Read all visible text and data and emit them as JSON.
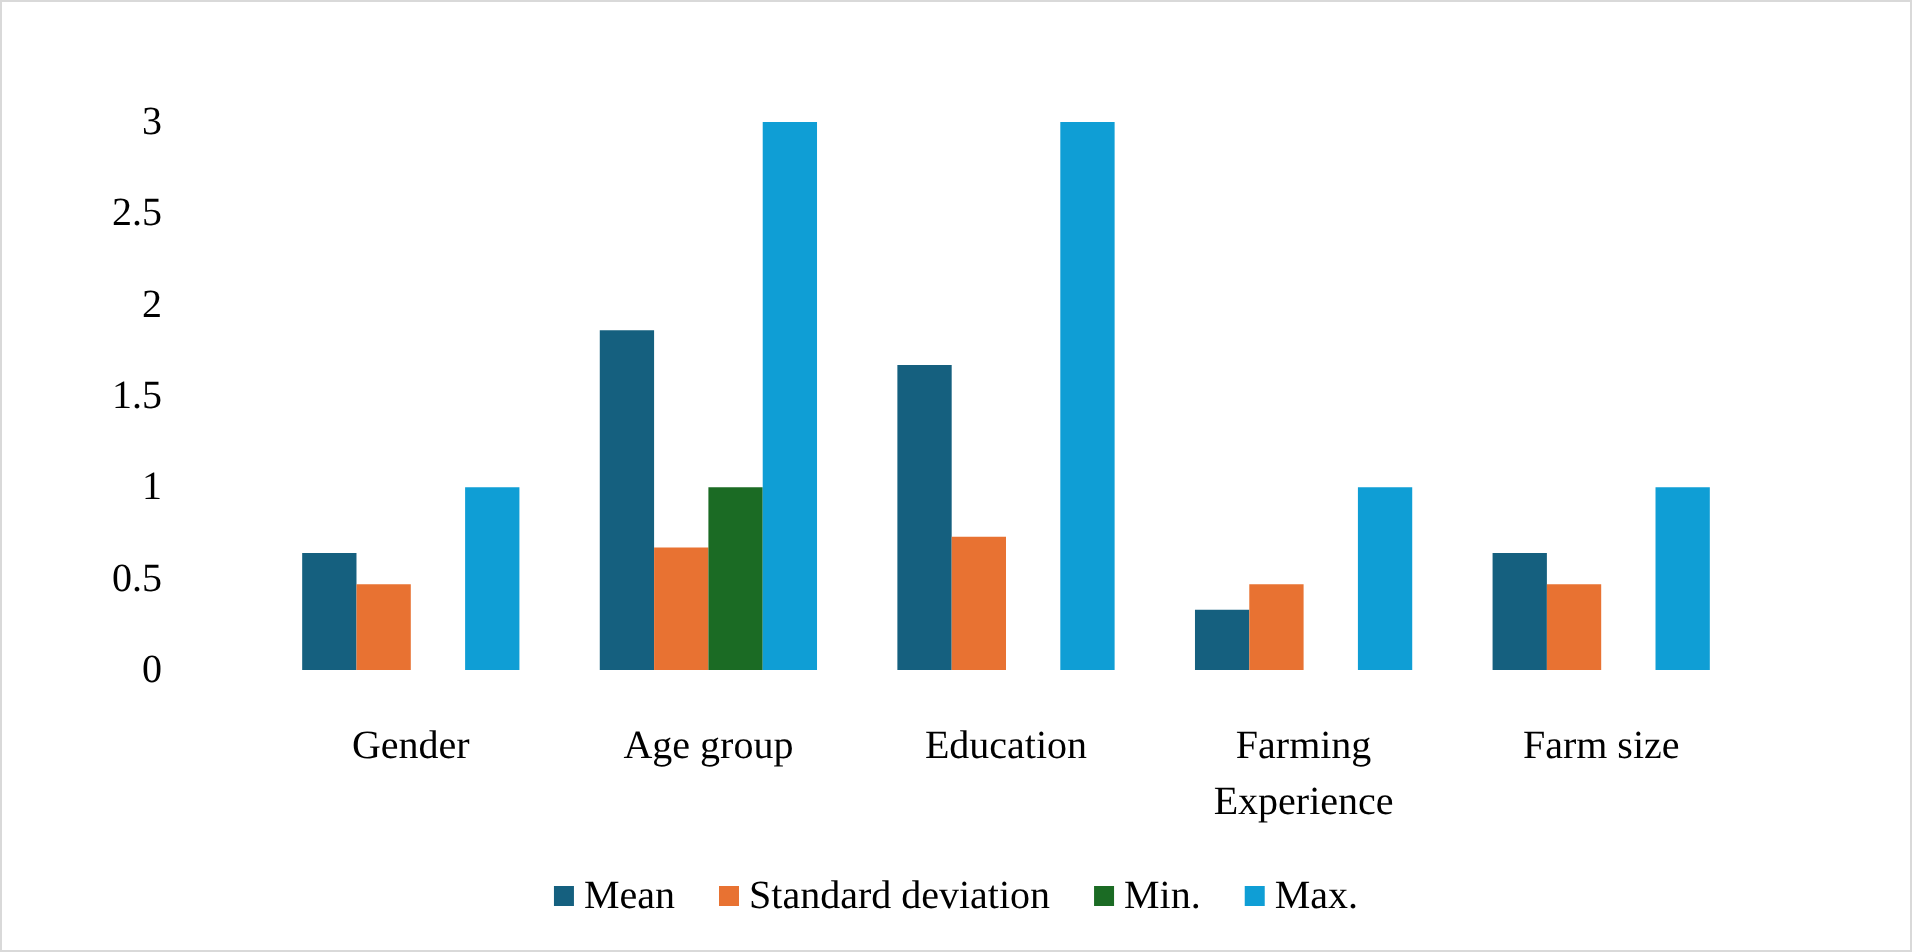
{
  "chart_data": {
    "type": "bar",
    "categories": [
      "Gender",
      "Age group",
      "Education",
      "Farming Experience",
      "Farm size"
    ],
    "series": [
      {
        "name": "Mean",
        "color": "#15607f",
        "values": [
          0.64,
          1.86,
          1.67,
          0.33,
          0.64
        ]
      },
      {
        "name": "Standard deviation",
        "color": "#e87232",
        "values": [
          0.47,
          0.67,
          0.73,
          0.47,
          0.47
        ]
      },
      {
        "name": "Min.",
        "color": "#1b6b24",
        "values": [
          0,
          1,
          0,
          0,
          0
        ]
      },
      {
        "name": "Max.",
        "color": "#0f9ed5",
        "values": [
          1,
          3,
          3,
          1,
          1
        ]
      }
    ],
    "ylim": [
      0,
      3
    ],
    "yticks": [
      0,
      0.5,
      1,
      1.5,
      2,
      2.5,
      3
    ],
    "grid": false,
    "legend": "bottom"
  }
}
